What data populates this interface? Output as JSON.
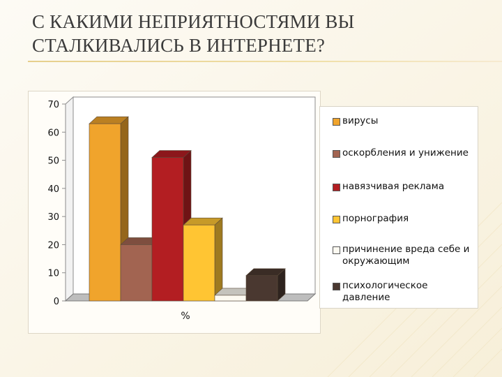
{
  "slide": {
    "title_line1": "С КАКИМИ НЕПРИЯТНОСТЯМИ ВЫ",
    "title_line2": "СТАЛКИВАЛИСЬ В ИНТЕРНЕТЕ?"
  },
  "colors": {
    "background": "#fbf7ec",
    "accent_rule": "#e6cf8c"
  },
  "chart_data": {
    "type": "bar",
    "style": "3d-clustered",
    "categories": [
      "%"
    ],
    "series": [
      {
        "name": "вирусы",
        "values": [
          63
        ],
        "color": "#f0a42c"
      },
      {
        "name": "оскорбления и унижение",
        "values": [
          20
        ],
        "color": "#a26451"
      },
      {
        "name": "навязчивая реклама",
        "values": [
          51
        ],
        "color": "#b31e22"
      },
      {
        "name": "порнография",
        "values": [
          27
        ],
        "color": "#ffc533"
      },
      {
        "name": "причинение вреда себе и окружающим",
        "values": [
          2
        ],
        "color": "#fdfaf1"
      },
      {
        "name": "психологическое давление",
        "values": [
          9
        ],
        "color": "#4a3830"
      }
    ],
    "ylim": [
      0,
      70
    ],
    "yticks": [
      "0",
      "10",
      "20",
      "30",
      "40",
      "50",
      "60",
      "70"
    ],
    "xlabel": "%",
    "grid": false,
    "legend": "right"
  }
}
